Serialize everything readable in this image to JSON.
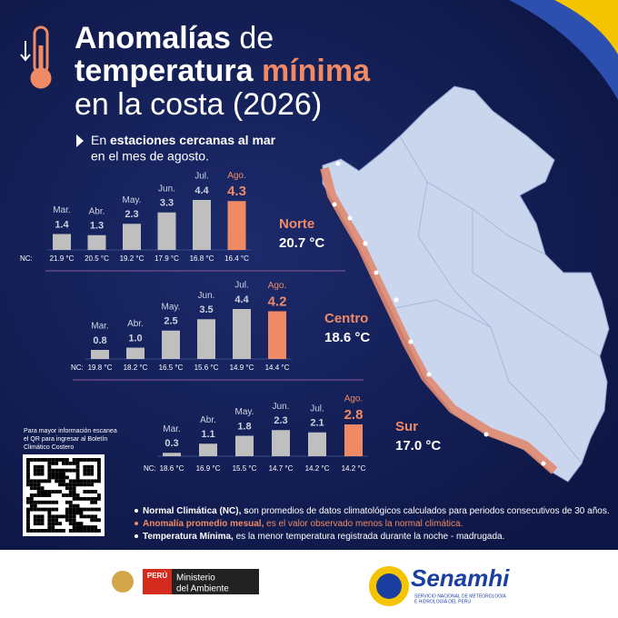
{
  "header": {
    "title": [
      [
        "Anomalías",
        " de"
      ],
      [
        "temperatura ",
        "mínima"
      ],
      [
        "en la costa (2026)"
      ]
    ],
    "subtitle": [
      [
        "En ",
        "estaciones cercanas al mar"
      ],
      [
        "en el mes de agosto."
      ]
    ]
  },
  "chart_data": [
    {
      "type": "bar",
      "region": "Norte",
      "region_temperature": "20.7 °C",
      "categories": [
        "Mar.",
        "Abr.",
        "May.",
        "Jun.",
        "Jul.",
        "Ago."
      ],
      "values": [
        1.4,
        1.3,
        2.3,
        3.3,
        4.4,
        4.3
      ],
      "normal_label": "NC:",
      "normals": [
        "21.9 °C",
        "20.5 °C",
        "19.2 °C",
        "17.9 °C",
        "16.8 °C",
        "16.4 °C"
      ],
      "color": "#bfbfbf",
      "highlight_color": "#f08a65"
    },
    {
      "type": "bar",
      "region": "Centro",
      "region_temperature": "18.6 °C",
      "categories": [
        "Mar.",
        "Abr.",
        "May.",
        "Jun.",
        "Jul.",
        "Ago."
      ],
      "values": [
        0.8,
        1.0,
        2.5,
        3.5,
        4.4,
        4.2
      ],
      "value_labels": [
        "0.8",
        "1.0",
        "2.5",
        "3.5",
        "4.4",
        "4.2"
      ],
      "normal_label": "NC:",
      "normals": [
        "19.8 °C",
        "18.2 °C",
        "16.5 °C",
        "15.6 °C",
        "14.9 °C",
        "14.4 °C"
      ],
      "color": "#bfbfbf",
      "highlight_color": "#f08a65"
    },
    {
      "type": "bar",
      "region": "Sur",
      "region_temperature": "17.0 °C",
      "categories": [
        "Mar.",
        "Abr.",
        "May.",
        "Jun.",
        "Jul.",
        "Ago."
      ],
      "values": [
        0.3,
        1.1,
        1.8,
        2.3,
        2.1,
        2.8
      ],
      "normal_label": "NC:",
      "normals": [
        "18.6 °C",
        "16.9 °C",
        "15.5 °C",
        "14.7 °C",
        "14.2 °C",
        "14.2 °C"
      ],
      "color": "#bfbfbf",
      "highlight_color": "#f08a65"
    }
  ],
  "qr_note": [
    "Para mayor información escanea",
    "el QR para ingresar al Boletín",
    "Climático Costero"
  ],
  "notes": [
    [
      "Normal Climática (NC), s",
      "on promedios de datos climatológicos calculados para periodos consecutivos de 30 años."
    ],
    [
      "Anomalía promedio mesual,",
      " es el valor observado menos la normal climática."
    ],
    [
      "Temperatura Mínima,",
      " es la menor temperatura registrada durante la noche - madrugada."
    ]
  ],
  "footer": {
    "country": "PERÚ",
    "ministry": [
      "Ministerio",
      "del Ambiente"
    ],
    "brand": "Senamhi",
    "brand_subtitle": [
      "SERVICIO NACIONAL DE METEOROLOGÍA",
      "E HIDROLOGÍA DEL PERÚ"
    ]
  }
}
